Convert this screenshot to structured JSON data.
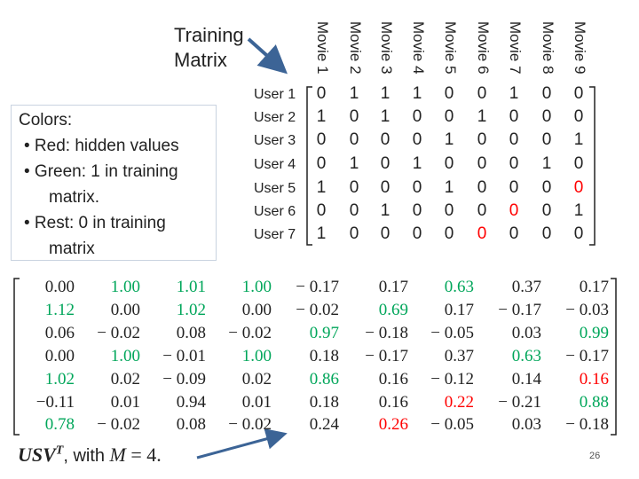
{
  "title": [
    "Training",
    "Matrix"
  ],
  "legend": {
    "heading": "Colors:",
    "items": [
      "• Red: hidden values",
      "• Green: 1 in training",
      "matrix.",
      "• Rest: 0 in training",
      "matrix"
    ]
  },
  "movies": [
    "Movie 1",
    "Movie 2",
    "Movie 3",
    "Movie 4",
    "Movie 5",
    "Movie 6",
    "Movie 7",
    "Movie 8",
    "Movie 9"
  ],
  "users": [
    "User 1",
    "User 2",
    "User 3",
    "User 4",
    "User 5",
    "User 6",
    "User 7"
  ],
  "training_matrix": [
    [
      "0",
      "1",
      "1",
      "1",
      "0",
      "0",
      "1",
      "0",
      "0"
    ],
    [
      "1",
      "0",
      "1",
      "0",
      "0",
      "1",
      "0",
      "0",
      "0"
    ],
    [
      "0",
      "0",
      "0",
      "0",
      "1",
      "0",
      "0",
      "0",
      "1"
    ],
    [
      "0",
      "1",
      "0",
      "1",
      "0",
      "0",
      "0",
      "1",
      "0"
    ],
    [
      "1",
      "0",
      "0",
      "0",
      "1",
      "0",
      "0",
      "0",
      "0"
    ],
    [
      "0",
      "0",
      "1",
      "0",
      "0",
      "0",
      "0",
      "0",
      "1"
    ],
    [
      "1",
      "0",
      "0",
      "0",
      "0",
      "0",
      "0",
      "0",
      "0"
    ]
  ],
  "training_colors": [
    [
      "",
      "",
      "",
      "",
      "",
      "",
      "",
      "",
      ""
    ],
    [
      "",
      "",
      "",
      "",
      "",
      "",
      "",
      "",
      ""
    ],
    [
      "",
      "",
      "",
      "",
      "",
      "",
      "",
      "",
      ""
    ],
    [
      "",
      "",
      "",
      "",
      "",
      "",
      "",
      "",
      ""
    ],
    [
      "",
      "",
      "",
      "",
      "",
      "",
      "",
      "",
      "red"
    ],
    [
      "",
      "",
      "",
      "",
      "",
      "",
      "red",
      "",
      ""
    ],
    [
      "",
      "",
      "",
      "",
      "",
      "red",
      "",
      "",
      ""
    ]
  ],
  "prediction_matrix": [
    [
      "0.00",
      "1.00",
      "1.01",
      "1.00",
      "− 0.17",
      "0.17",
      "0.63",
      "0.37",
      "0.17"
    ],
    [
      "1.12",
      "0.00",
      "1.02",
      "0.00",
      "− 0.02",
      "0.69",
      "0.17",
      "− 0.17",
      "− 0.03"
    ],
    [
      "0.06",
      "− 0.02",
      "0.08",
      "− 0.02",
      "0.97",
      "− 0.18",
      "− 0.05",
      "0.03",
      "0.99"
    ],
    [
      "0.00",
      "1.00",
      "− 0.01",
      "1.00",
      "0.18",
      "− 0.17",
      "0.37",
      "0.63",
      "− 0.17"
    ],
    [
      "1.02",
      "0.02",
      "− 0.09",
      "0.02",
      "0.86",
      "0.16",
      "− 0.12",
      "0.14",
      "0.16"
    ],
    [
      "−0.11",
      "0.01",
      "0.94",
      "0.01",
      "0.18",
      "0.16",
      "0.22",
      "− 0.21",
      "0.88"
    ],
    [
      "0.78",
      "− 0.02",
      "0.08",
      "− 0.02",
      "0.24",
      "0.26",
      "− 0.05",
      "0.03",
      "− 0.18"
    ]
  ],
  "prediction_colors": [
    [
      "",
      "green",
      "green",
      "green",
      "",
      "",
      "green",
      "",
      ""
    ],
    [
      "green",
      "",
      "green",
      "",
      "",
      "green",
      "",
      "",
      ""
    ],
    [
      "",
      "",
      "",
      "",
      "green",
      "",
      "",
      "",
      "green"
    ],
    [
      "",
      "green",
      "",
      "green",
      "",
      "",
      "",
      "green",
      ""
    ],
    [
      "green",
      "",
      "",
      "",
      "green",
      "",
      "",
      "",
      "red"
    ],
    [
      "",
      "",
      "",
      "",
      "",
      "",
      "red",
      "",
      "green"
    ],
    [
      "green",
      "",
      "",
      "",
      "",
      "red",
      "",
      "",
      ""
    ]
  ],
  "formula": {
    "main": "USV",
    "sup": "T",
    "rest": ", with",
    "var": "M",
    "eq": "= 4."
  },
  "page_number": "26",
  "colors": {
    "red": "#ff0000",
    "green": "#00a65a",
    "arrow": "#3c6496"
  }
}
